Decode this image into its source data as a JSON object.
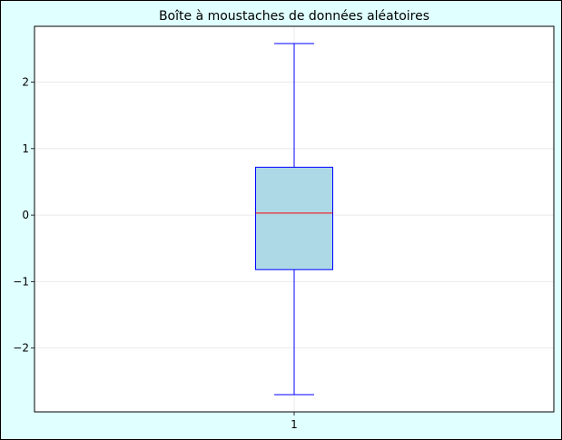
{
  "chart_data": {
    "type": "box",
    "title": "Boîte à moustaches de données aléatoires",
    "xlabel": "",
    "ylabel": "",
    "categories": [
      "1"
    ],
    "boxes": [
      {
        "category": "1",
        "whisker_low": -2.7,
        "q1": -0.82,
        "median": 0.03,
        "q3": 0.72,
        "whisker_high": 2.58
      }
    ],
    "ylim": [
      -2.96,
      2.84
    ],
    "yticks": [
      -2,
      -1,
      0,
      1,
      2
    ],
    "ytick_labels": [
      "−2",
      "−1",
      "0",
      "1",
      "2"
    ],
    "grid": true,
    "colors": {
      "figure_background": "#e0ffff",
      "axes_background": "#ffffff",
      "box_fill": "#add8e6",
      "box_edge": "#0000ff",
      "whisker": "#0000ff",
      "median": "#ff0000",
      "grid": "#e6e6e6"
    }
  }
}
